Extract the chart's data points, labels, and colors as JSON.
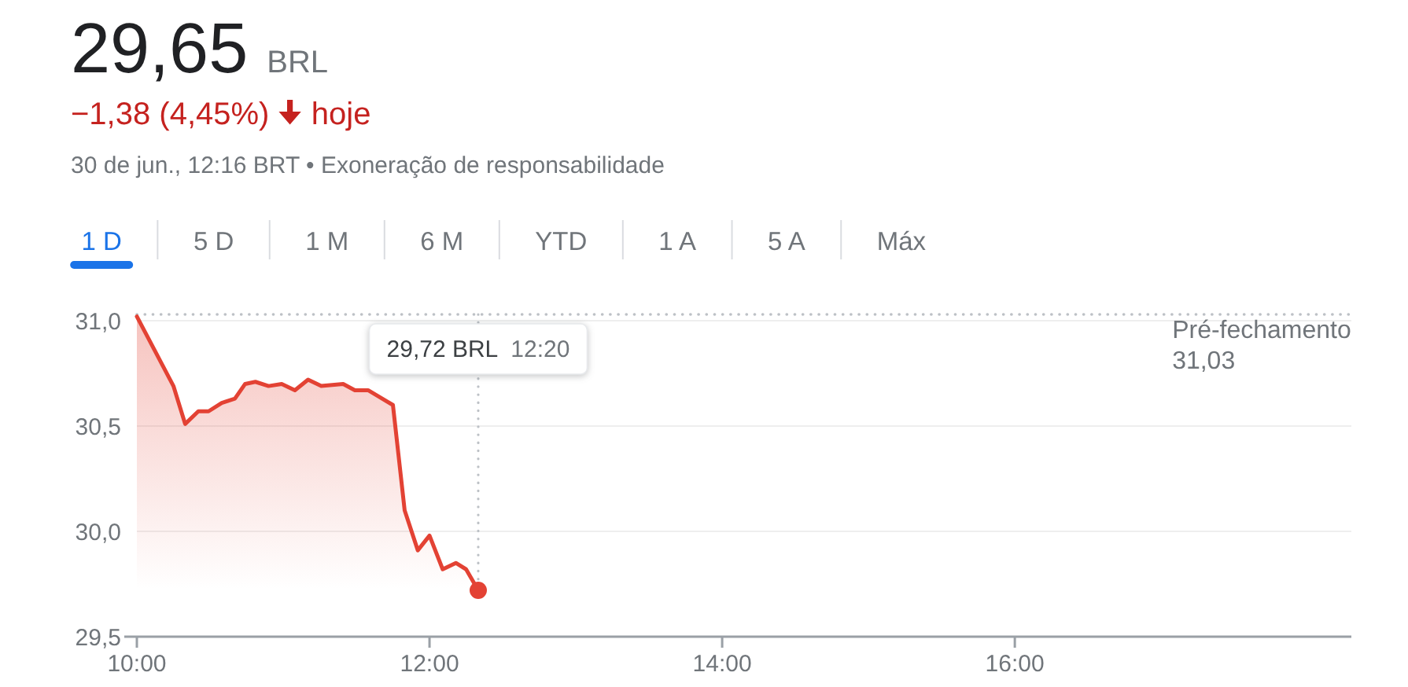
{
  "chart_data": {
    "type": "area",
    "title": "29,65 BRL",
    "subtitle": "−1,38 (4,45%) hoje",
    "annotations": [
      "30 de jun., 12:16 BRT • Exoneração de responsabilidade",
      "1 D",
      "5 D",
      "1 M",
      "6 M",
      "YTD",
      "1 A",
      "5 A",
      "Máx",
      {
        "text": "29,72 BRL 12:20",
        "x": 12.333,
        "y": 29.72
      }
    ],
    "xlim": [
      10,
      18.3
    ],
    "xticks": [
      {
        "value": 10,
        "label": "10:00"
      },
      {
        "value": 12,
        "label": "12:00"
      },
      {
        "value": 14,
        "label": "14:00"
      },
      {
        "value": 16,
        "label": "16:00"
      }
    ],
    "ylim": [
      29.5,
      31.03
    ],
    "yticks": [
      {
        "value": 29.5,
        "label": "29,5"
      },
      {
        "value": 30,
        "label": "30,0"
      },
      {
        "value": 30.5,
        "label": "30,5"
      },
      {
        "value": 31,
        "label": "31,0"
      }
    ],
    "grid": "y",
    "series": [
      {
        "color": "#e34234",
        "x": [
          10,
          10.25,
          10.33,
          10.42,
          10.49,
          10.58,
          10.67,
          10.74,
          10.81,
          10.9,
          10.99,
          11.08,
          11.17,
          11.26,
          11.41,
          11.49,
          11.58,
          11.75,
          11.83,
          11.92,
          12,
          12.09,
          12.18,
          12.25,
          12.333
        ],
        "values": [
          31.02,
          30.69,
          30.51,
          30.57,
          30.57,
          30.61,
          30.63,
          30.7,
          30.71,
          30.69,
          30.7,
          30.67,
          30.72,
          30.69,
          30.7,
          30.67,
          30.67,
          30.6,
          30.1,
          29.91,
          29.98,
          29.82,
          29.85,
          29.82,
          29.72
        ]
      },
      {
        "type": "scatter",
        "color": "#e34234",
        "x": [
          12.333
        ],
        "values": [
          29.72
        ]
      }
    ],
    "ref_lines": [
      {
        "axis": "y",
        "value": 31.03,
        "label": "Pré-fechamento\n31,03",
        "color": "#bdc1c6",
        "line_style": "dotted"
      }
    ]
  }
}
